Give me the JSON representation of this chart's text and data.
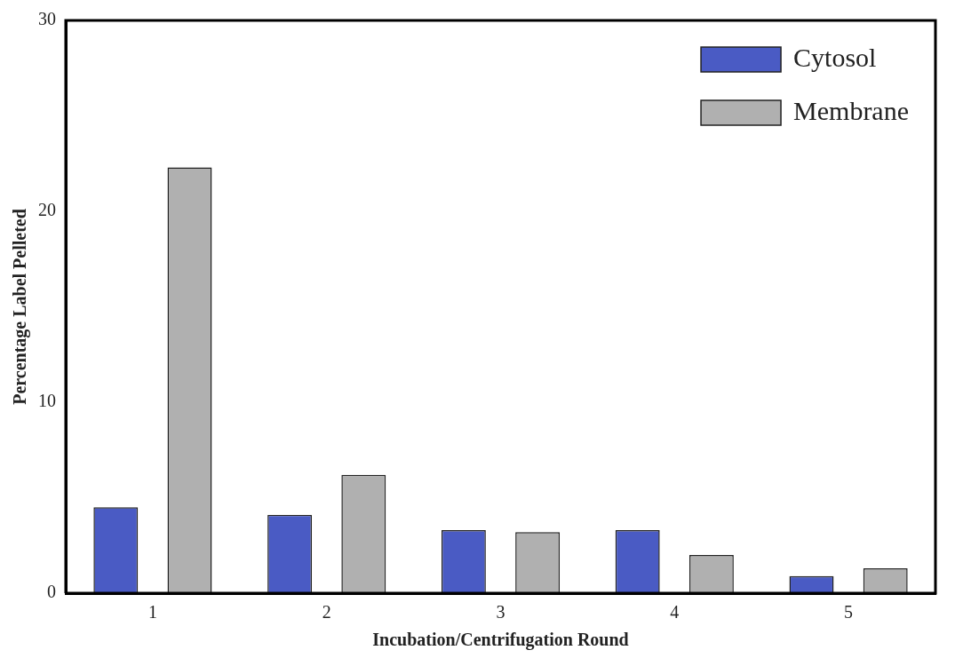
{
  "chart_data": {
    "type": "bar",
    "xlabel": "Incubation/Centrifugation Round",
    "ylabel": "Percentage Label Pelleted",
    "categories": [
      "1",
      "2",
      "3",
      "4",
      "5"
    ],
    "series": [
      {
        "name": "Cytosol",
        "color": "#4a5bc4",
        "values": [
          4.5,
          4.1,
          3.3,
          3.3,
          0.9
        ]
      },
      {
        "name": "Membrane",
        "color": "#b0b0b0",
        "values": [
          22.3,
          6.2,
          3.2,
          2.0,
          1.3
        ]
      }
    ],
    "ylim": [
      0,
      30
    ],
    "yticks": [
      0,
      10,
      20,
      30
    ],
    "grid": false,
    "legend": "top right"
  }
}
